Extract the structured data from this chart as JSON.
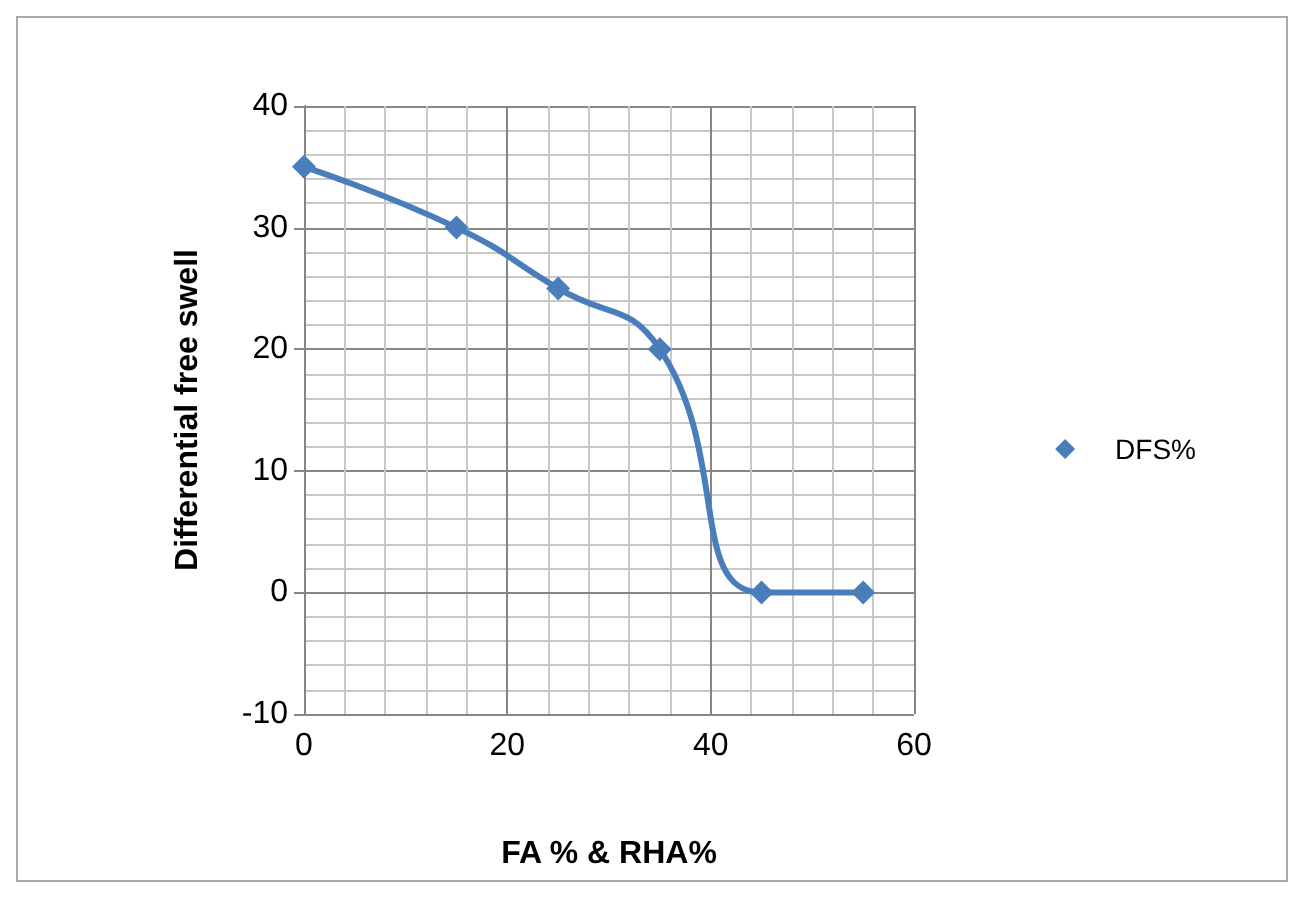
{
  "chart_data": {
    "type": "line",
    "xlabel": "FA % & RHA%",
    "ylabel": "Differential free swell",
    "x": [
      0,
      15,
      25,
      35,
      45,
      55
    ],
    "series": [
      {
        "name": "DFS%",
        "color": "#4a7ebb",
        "values": [
          35,
          30,
          25,
          20,
          0,
          0
        ]
      }
    ],
    "xlim": [
      0,
      60
    ],
    "xticks": [
      0,
      20,
      40,
      60
    ],
    "ylim": [
      -10,
      40
    ],
    "yticks": [
      -10,
      0,
      10,
      20,
      30,
      40
    ],
    "grid": true,
    "legend": "right",
    "marker": "diamond",
    "line_style": "solid"
  }
}
